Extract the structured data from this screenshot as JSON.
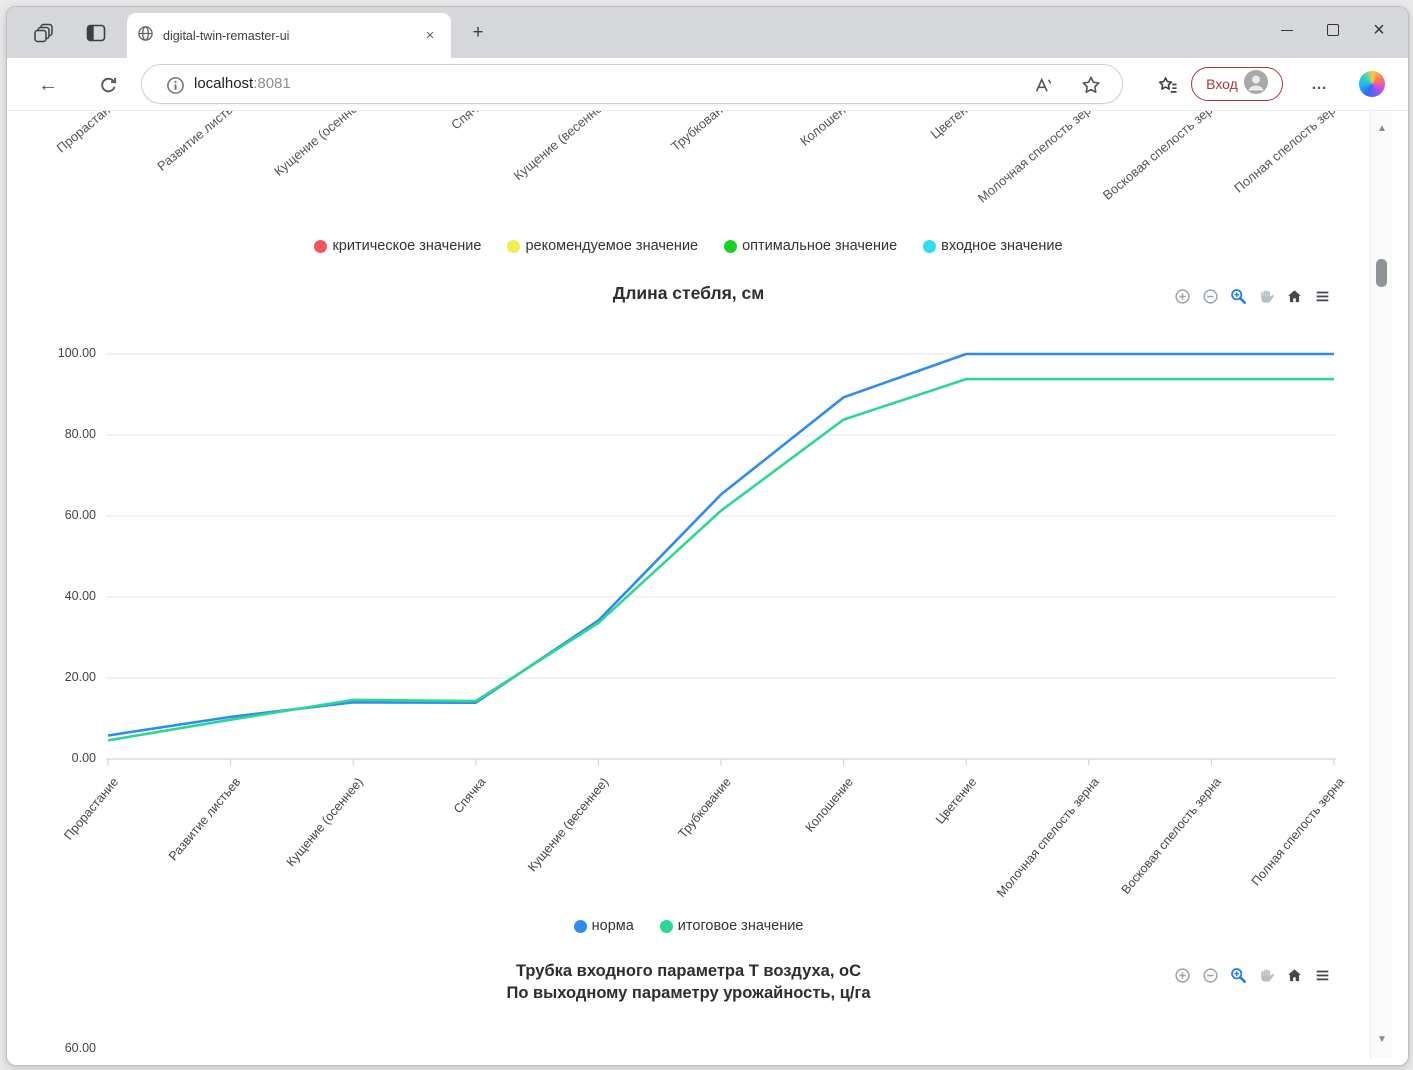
{
  "browser": {
    "tab": {
      "title": "digital-twin-remaster-ui"
    },
    "url": {
      "host": "localhost",
      "port": ":8081"
    },
    "signin_label": "Вход"
  },
  "legend_top": {
    "items": [
      {
        "label": "критическое значение",
        "color": "#f1555f"
      },
      {
        "label": "рекомендуемое значение",
        "color": "#f1ee52"
      },
      {
        "label": "оптимальное значение",
        "color": "#17d324"
      },
      {
        "label": "входное значение",
        "color": "#2bdfee"
      }
    ]
  },
  "modebar": {
    "icons": [
      {
        "name": "zoom-in-icon",
        "color": "#9aa2a9"
      },
      {
        "name": "zoom-out-icon",
        "color": "#9aa2a9"
      },
      {
        "name": "box-zoom-icon",
        "color": "#1d7df2"
      },
      {
        "name": "pan-icon",
        "color": "#b8bfc5"
      },
      {
        "name": "home-icon",
        "color": "#42484e"
      },
      {
        "name": "menu-icon",
        "color": "#42484e"
      }
    ]
  },
  "chart_data": [
    {
      "type": "line",
      "visible_part": "clipped x-axis labels of chart scrolled above",
      "categories": [
        "Прорастание",
        "Развитие листьев",
        "Кущение (осеннее)",
        "Спячка",
        "Кущение (весеннее)",
        "Трубкование",
        "Колошение",
        "Цветение",
        "Молочная спелость зерна",
        "Восковая спелость зерна",
        "Полная спелость зерна"
      ]
    },
    {
      "type": "line",
      "title": "Длина стебля, см",
      "categories": [
        "Прорастание",
        "Развитие листьев",
        "Кущение (осеннее)",
        "Спячка",
        "Кущение (весеннее)",
        "Трубкование",
        "Колошение",
        "Цветение",
        "Молочная спелость зерна",
        "Восковая спелость зерна",
        "Полная спелость зерна"
      ],
      "yticks": [
        "0.00",
        "20.00",
        "40.00",
        "60.00",
        "80.00",
        "100.00"
      ],
      "ylim": [
        0,
        100
      ],
      "grid": "horizontal",
      "legend_position": "below",
      "series": [
        {
          "name": "норма",
          "color": "#2e8bf0",
          "values": [
            5.8,
            10.4,
            14.0,
            13.9,
            34.2,
            65.3,
            89.3,
            100,
            100,
            100,
            100
          ]
        },
        {
          "name": "итоговое значение",
          "color": "#2bd793",
          "values": [
            4.6,
            9.7,
            14.6,
            14.3,
            33.6,
            61.3,
            83.8,
            93.8,
            93.8,
            93.8,
            93.8
          ]
        }
      ]
    },
    {
      "type": "line",
      "title_line1": "Трубка входного параметра Т воздуха, оС",
      "title_line2": "По выходному параметру урожайность, ц/га",
      "visible_ytick": "60.00",
      "legend": [
        {
          "name": "норма",
          "color": "#2e8bf0"
        },
        {
          "name": "итоговое значение",
          "color": "#2bd793"
        }
      ]
    }
  ]
}
